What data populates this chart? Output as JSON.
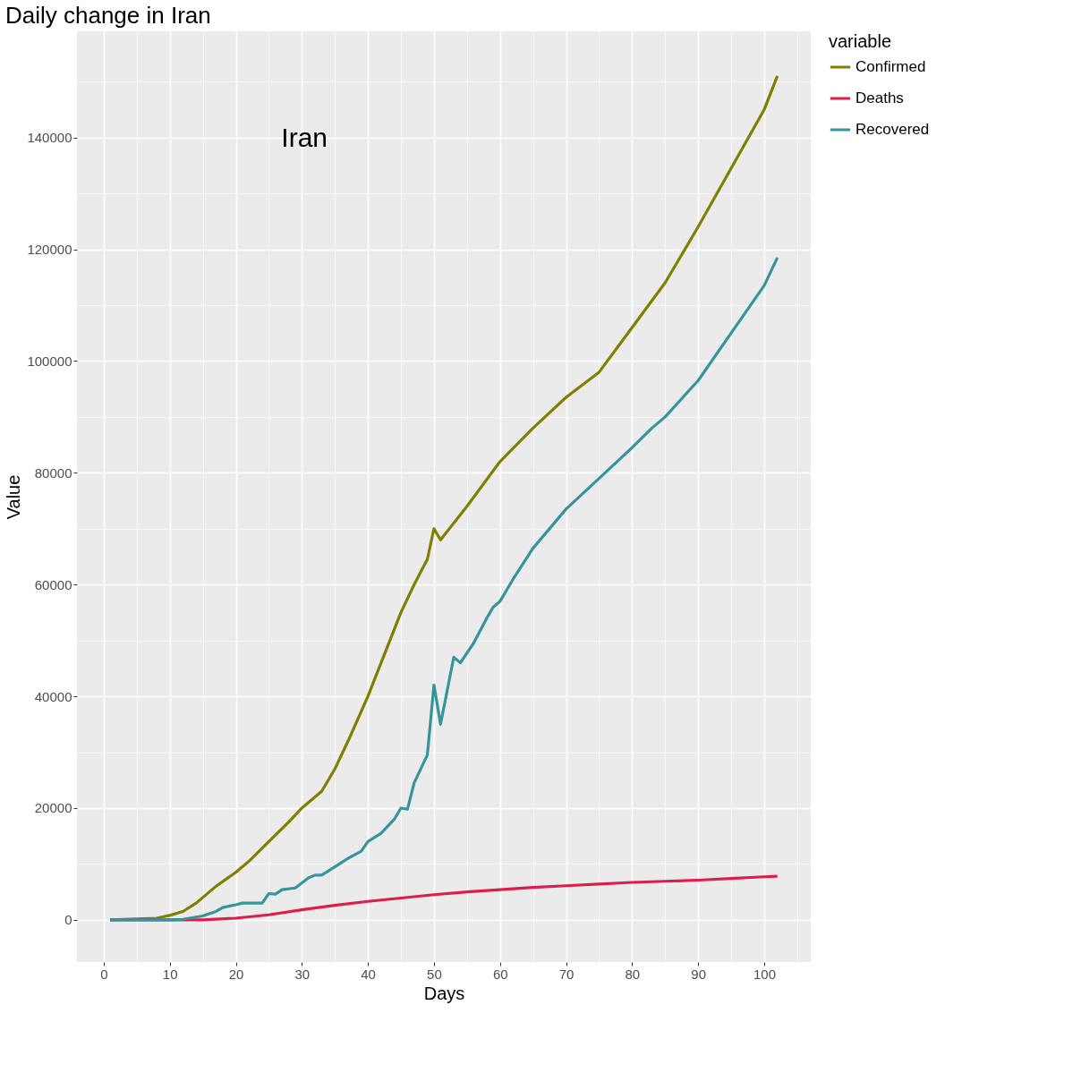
{
  "chart_data": {
    "type": "line",
    "title": "Daily change in Iran",
    "xlabel": "Days",
    "ylabel": "Value",
    "legend_title": "variable",
    "annotations": [
      "Iran"
    ],
    "xlim": [
      -4.05,
      107.05
    ],
    "ylim": [
      -7550,
      159000
    ],
    "xticks": [
      0,
      {
        "value": 5,
        "label": null
      },
      10,
      {
        "value": 15,
        "label": null
      },
      20,
      {
        "value": 25,
        "label": null
      },
      30,
      {
        "value": 35,
        "label": null
      },
      40,
      {
        "value": 45,
        "label": null
      },
      50,
      {
        "value": 55,
        "label": null
      },
      60,
      {
        "value": 65,
        "label": null
      },
      70,
      {
        "value": 75,
        "label": null
      },
      80,
      {
        "value": 85,
        "label": null
      },
      90,
      {
        "value": 95,
        "label": null
      },
      100,
      {
        "value": 105,
        "label": null
      }
    ],
    "yticks": [
      0,
      {
        "value": 10000,
        "label": null
      },
      20000,
      {
        "value": 30000,
        "label": null
      },
      40000,
      {
        "value": 50000,
        "label": null
      },
      60000,
      {
        "value": 70000,
        "label": null
      },
      80000,
      {
        "value": 90000,
        "label": null
      },
      100000,
      {
        "value": 110000,
        "label": null
      },
      120000,
      {
        "value": 130000,
        "label": null
      },
      140000,
      {
        "value": 150000,
        "label": null
      }
    ],
    "grid": true,
    "legend": "right",
    "line_style": "solid",
    "marker": "none",
    "series": [
      {
        "name": "Confirmed",
        "color": "#7f7f00",
        "x": [
          1,
          8,
          10,
          12,
          14,
          15,
          17,
          20,
          22,
          25,
          28,
          30,
          33,
          35,
          37,
          40,
          42,
          45,
          47,
          49,
          50,
          51,
          55,
          60,
          65,
          70,
          75,
          80,
          85,
          90,
          95,
          100,
          102
        ],
        "values": [
          0,
          300,
          800,
          1500,
          3000,
          4000,
          6000,
          8500,
          10500,
          14000,
          17500,
          20000,
          23000,
          27000,
          32000,
          40000,
          46000,
          55000,
          60000,
          64500,
          70000,
          68000,
          74000,
          82000,
          88000,
          93500,
          98000,
          106000,
          114000,
          124000,
          134500,
          145000,
          151000
        ]
      },
      {
        "name": "Deaths",
        "color": "#dc1e4a",
        "x": [
          1,
          15,
          20,
          25,
          30,
          35,
          40,
          45,
          50,
          55,
          60,
          65,
          70,
          75,
          80,
          85,
          90,
          95,
          100,
          102
        ],
        "values": [
          0,
          0,
          300,
          900,
          1800,
          2600,
          3300,
          3900,
          4500,
          5000,
          5400,
          5800,
          6100,
          6400,
          6700,
          6900,
          7100,
          7400,
          7700,
          7800
        ]
      },
      {
        "name": "Recovered",
        "color": "#35959a",
        "x": [
          1,
          10,
          12,
          15,
          17,
          18,
          20,
          21,
          24,
          25,
          26,
          27,
          29,
          31,
          32,
          33,
          35,
          37,
          39,
          40,
          42,
          44,
          45,
          46,
          47,
          49,
          50,
          51,
          52,
          53,
          54,
          56,
          58,
          59,
          60,
          62,
          65,
          70,
          75,
          80,
          83,
          85,
          90,
          95,
          100,
          102
        ],
        "values": [
          0,
          0,
          100,
          700,
          1500,
          2200,
          2700,
          3000,
          3000,
          4700,
          4600,
          5400,
          5700,
          7500,
          8000,
          8000,
          9500,
          11000,
          12300,
          14000,
          15500,
          18000,
          20000,
          19800,
          24500,
          29500,
          42000,
          35000,
          41000,
          47000,
          46000,
          49500,
          54000,
          56000,
          57000,
          61000,
          66500,
          73500,
          79000,
          84500,
          88000,
          90000,
          96500,
          105000,
          113500,
          118500
        ]
      }
    ]
  }
}
